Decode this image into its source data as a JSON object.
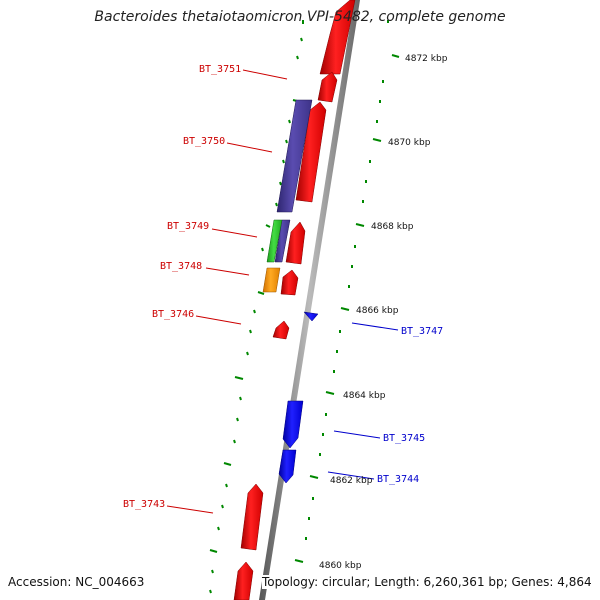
{
  "title": "Bacteroides thetaiotaomicron VPI-5482, complete genome",
  "accession": "Accession: NC_004663",
  "summary": "Topology: circular; Length: 6,260,361 bp; Genes: 4,864",
  "colors": {
    "forward_gene": "#ff0000",
    "reverse_gene": "#0000ff",
    "cds_purple": "#4b3f9a",
    "cds_green": "#33cc33",
    "cds_orange": "#ff9900",
    "tick": "#008800",
    "backbone": "#888888",
    "forward_label": "#cc0000",
    "reverse_label": "#0000cc"
  },
  "scale_labels": [
    "4872 kbp",
    "4870 kbp",
    "4868 kbp",
    "4866 kbp",
    "4864 kbp",
    "4862 kbp",
    "4860 kbp"
  ],
  "gene_labels": [
    "BT_3751",
    "BT_3750",
    "BT_3749",
    "BT_3748",
    "BT_3746",
    "BT_3747",
    "BT_3745",
    "BT_3744",
    "BT_3743"
  ]
}
